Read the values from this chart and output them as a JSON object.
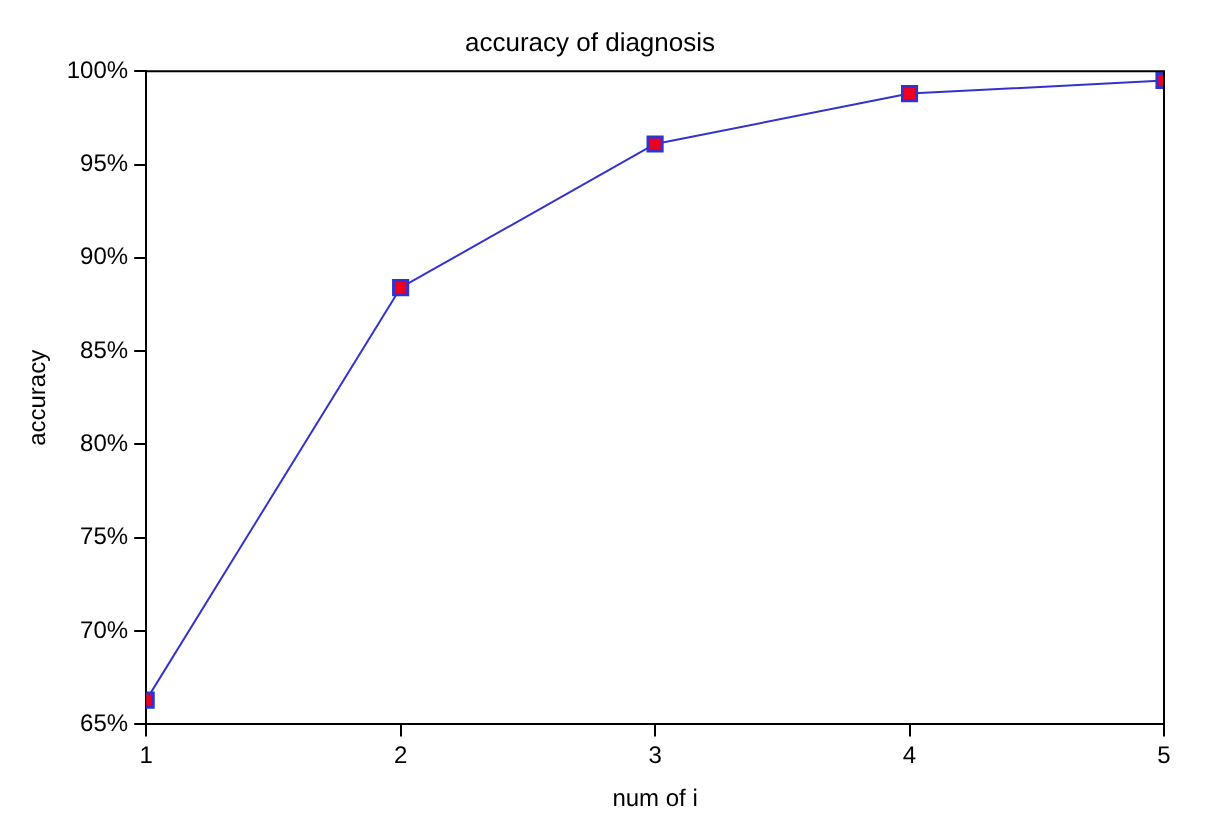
{
  "chart_data": {
    "type": "line",
    "title": "accuracy of diagnosis",
    "xlabel": "num of i",
    "ylabel": "accuracy",
    "x": [
      1,
      2,
      3,
      4,
      5
    ],
    "series": [
      {
        "color": "#3333cc",
        "values": [
          66.3,
          88.4,
          96.1,
          98.8,
          99.5
        ]
      }
    ],
    "xlim": [
      1,
      5
    ],
    "xticks": [
      1,
      2,
      3,
      4,
      5
    ],
    "ylim": [
      65,
      100
    ],
    "yticks": [
      {
        "value": 65,
        "label": "65%"
      },
      {
        "value": 70,
        "label": "70%"
      },
      {
        "value": 75,
        "label": "75%"
      },
      {
        "value": 80,
        "label": "80%"
      },
      {
        "value": 85,
        "label": "85%"
      },
      {
        "value": 90,
        "label": "90%"
      },
      {
        "value": 95,
        "label": "95%"
      },
      {
        "value": 100,
        "label": "100%"
      }
    ],
    "grid": false,
    "legend": false,
    "marker": "square",
    "line_style": "solid"
  }
}
